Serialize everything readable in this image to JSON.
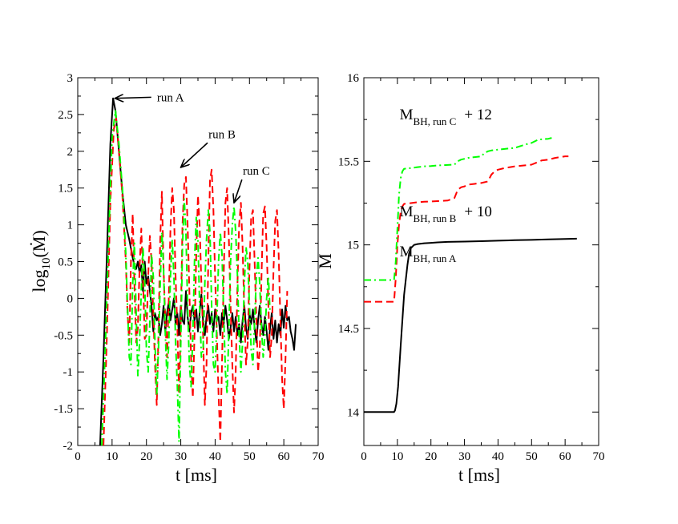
{
  "figure": {
    "left_panel": {
      "xlabel": "t [ms]",
      "ylabel_main": "log",
      "ylabel_sub": "10",
      "ylabel_tail": "(Ṁ)",
      "x_ticks": [
        "0",
        "10",
        "20",
        "30",
        "40",
        "50",
        "60",
        "70"
      ],
      "y_ticks": [
        "-2",
        "-1.5",
        "-1",
        "-0.5",
        "0",
        "0.5",
        "1",
        "1.5",
        "2",
        "2.5",
        "3"
      ]
    },
    "right_panel": {
      "xlabel": "t [ms]",
      "ylabel": "M",
      "x_ticks": [
        "0",
        "10",
        "20",
        "30",
        "40",
        "50",
        "60",
        "70"
      ],
      "y_ticks": [
        "14",
        "14.5",
        "15",
        "15.5",
        "16"
      ]
    }
  },
  "chart_data": [
    {
      "type": "line",
      "title": "",
      "xlabel": "t [ms]",
      "ylabel": "log10(Ṁ)",
      "xlim": [
        0,
        70
      ],
      "ylim": [
        -2,
        3
      ],
      "annotations": [
        {
          "text": "run A",
          "x": 27,
          "y": 2.68,
          "arrow_to": [
            10.8,
            2.72
          ]
        },
        {
          "text": "run B",
          "x": 42,
          "y": 2.18,
          "arrow_to": [
            30,
            1.78
          ]
        },
        {
          "text": "run C",
          "x": 52,
          "y": 1.68,
          "arrow_to": [
            45.5,
            1.3
          ]
        }
      ],
      "series": [
        {
          "name": "run A",
          "color": "#000000",
          "style": "solid",
          "x": [
            6.5,
            7.5,
            8.5,
            9.5,
            10.3,
            11,
            12,
            13,
            14,
            15,
            16,
            16.5,
            17,
            17.5,
            18,
            18.5,
            19,
            19.5,
            20,
            20.5,
            21,
            21.5,
            22,
            22.5,
            23,
            23.5,
            24,
            24.5,
            25,
            25.5,
            26,
            26.5,
            27,
            27.5,
            28,
            28.5,
            29,
            29.5,
            30,
            30.5,
            31,
            31.5,
            32,
            32.5,
            33,
            33.5,
            34,
            34.5,
            35,
            35.5,
            36,
            36.5,
            37,
            37.5,
            38,
            38.5,
            39,
            39.5,
            40,
            40.5,
            41,
            41.5,
            42,
            42.5,
            43,
            43.5,
            44,
            44.5,
            45,
            45.5,
            46,
            46.5,
            47,
            47.5,
            48,
            48.5,
            49,
            49.5,
            50,
            50.5,
            51,
            51.5,
            52,
            52.5,
            53,
            53.5,
            54,
            54.5,
            55,
            55.5,
            56,
            56.5,
            57,
            57.5,
            58,
            58.5,
            59,
            59.5,
            60,
            60.5,
            61,
            61.5,
            62,
            62.5,
            63,
            63.5
          ],
          "y": [
            -2.0,
            -0.8,
            0.6,
            2.1,
            2.72,
            2.55,
            2.0,
            1.45,
            1.0,
            0.8,
            0.55,
            0.45,
            0.4,
            0.5,
            0.35,
            0.45,
            0.1,
            0.5,
            0.2,
            0.3,
            0.1,
            -0.1,
            -0.45,
            -0.2,
            -0.3,
            -0.25,
            -0.5,
            -0.35,
            -0.1,
            -0.45,
            -0.2,
            -0.05,
            -0.3,
            -0.15,
            0.0,
            -0.35,
            -0.2,
            -0.5,
            -0.1,
            -0.3,
            -0.35,
            0.1,
            -0.25,
            -0.45,
            -0.2,
            -0.1,
            -0.3,
            -0.15,
            -0.45,
            -0.2,
            0.05,
            -0.3,
            -0.5,
            -0.25,
            -0.1,
            -0.35,
            -0.2,
            -0.45,
            -0.15,
            -0.3,
            -0.25,
            -0.5,
            -0.2,
            -0.35,
            -0.1,
            -0.3,
            -0.55,
            -0.4,
            -0.2,
            -0.45,
            -0.25,
            -0.5,
            -0.35,
            -0.6,
            -0.3,
            -0.1,
            -0.4,
            -0.55,
            -0.2,
            -0.35,
            -0.15,
            -0.4,
            -0.6,
            -0.3,
            -0.1,
            -0.35,
            -0.5,
            -0.25,
            -0.45,
            -0.7,
            -0.4,
            -0.2,
            -0.55,
            -0.3,
            -0.6,
            -0.35,
            -0.5,
            -0.15,
            -0.4,
            -0.1,
            -0.3,
            -0.25,
            -0.45,
            -0.55,
            -0.7,
            -0.35
          ]
        },
        {
          "name": "run B",
          "color": "#ff0000",
          "style": "dashed",
          "x": [
            7.5,
            8.5,
            9.5,
            10.5,
            11.2,
            12,
            13,
            14,
            14.5,
            15,
            15.5,
            16,
            16.5,
            17,
            17.5,
            18,
            18.5,
            19,
            19.5,
            20,
            20.5,
            21,
            21.5,
            22,
            22.5,
            23,
            23.5,
            24,
            24.5,
            25,
            25.5,
            26,
            26.5,
            27,
            27.5,
            28,
            28.5,
            29,
            29.5,
            30,
            30.5,
            31,
            31.5,
            32,
            32.5,
            33,
            33.5,
            34,
            34.5,
            35,
            35.5,
            36,
            36.5,
            37,
            37.5,
            38,
            38.5,
            39,
            39.5,
            40,
            40.5,
            41,
            41.5,
            42,
            42.5,
            43,
            43.5,
            44,
            44.5,
            45,
            45.5,
            46,
            46.5,
            47,
            47.5,
            48,
            48.5,
            49,
            49.5,
            50,
            50.5,
            51,
            51.5,
            52,
            52.5,
            53,
            53.5,
            54,
            54.5,
            55,
            55.5,
            56,
            56.5,
            57,
            57.5,
            58,
            58.5,
            59,
            59.5,
            60,
            60.5,
            61
          ],
          "y": [
            -2.0,
            -0.5,
            1.3,
            2.3,
            2.45,
            2.0,
            1.4,
            0.5,
            -0.2,
            -0.6,
            0.5,
            1.15,
            0.2,
            -0.6,
            -0.4,
            0.4,
            0.95,
            0.3,
            -0.55,
            -0.5,
            0.3,
            0.85,
            0.5,
            -0.2,
            -0.9,
            -1.45,
            -0.5,
            0.8,
            1.45,
            0.4,
            -0.3,
            -0.8,
            0.0,
            0.95,
            1.5,
            1.2,
            0.3,
            -0.4,
            -1.3,
            -0.3,
            1.0,
            1.55,
            1.65,
            1.0,
            0.1,
            -0.8,
            -1.35,
            -0.5,
            0.6,
            1.4,
            1.0,
            0.2,
            -0.5,
            -1.45,
            -0.9,
            0.5,
            1.6,
            1.75,
            1.2,
            0.3,
            -0.5,
            -1.3,
            -1.95,
            -0.9,
            0.3,
            1.3,
            1.5,
            0.8,
            -0.1,
            -0.9,
            -1.55,
            -1.0,
            0.2,
            1.0,
            1.3,
            0.7,
            -0.2,
            -0.9,
            -0.6,
            0.4,
            1.1,
            1.2,
            0.5,
            -0.3,
            -1.0,
            -0.7,
            0.3,
            1.15,
            1.25,
            0.7,
            -0.1,
            -0.8,
            -0.5,
            0.4,
            1.05,
            1.2,
            0.6,
            -0.3,
            -1.1,
            -1.5,
            -0.8,
            0.1
          ]
        },
        {
          "name": "run C",
          "color": "#00ff00",
          "style": "dashdot",
          "x": [
            7,
            8,
            9,
            10,
            11,
            12,
            13,
            14,
            14.5,
            15,
            15.5,
            16,
            16.5,
            17,
            17.5,
            18,
            18.5,
            19,
            19.5,
            20,
            20.5,
            21,
            21.5,
            22,
            22.5,
            23,
            23.5,
            24,
            24.5,
            25,
            25.5,
            26,
            26.5,
            27,
            27.5,
            28,
            28.5,
            29,
            29.5,
            30,
            30.5,
            31,
            31.5,
            32,
            32.5,
            33,
            33.5,
            34,
            34.5,
            35,
            35.5,
            36,
            36.5,
            37,
            37.5,
            38,
            38.5,
            39,
            39.5,
            40,
            40.5,
            41,
            41.5,
            42,
            42.5,
            43,
            43.5,
            44,
            44.5,
            45,
            45.5,
            46,
            46.5,
            47,
            47.5,
            48,
            48.5,
            49,
            49.5,
            50,
            50.5,
            51,
            51.5,
            52,
            52.5,
            53,
            53.5,
            54,
            54.5,
            55,
            55.5,
            56
          ],
          "y": [
            -2.0,
            -0.7,
            0.8,
            2.2,
            2.55,
            2.1,
            1.5,
            0.6,
            -0.1,
            -0.8,
            -0.9,
            0.2,
            0.75,
            -0.2,
            -1.05,
            -0.6,
            0.1,
            0.7,
            0.2,
            -0.7,
            -1.0,
            -0.3,
            0.6,
            0.3,
            -0.6,
            -1.3,
            -0.7,
            0.2,
            0.9,
            0.4,
            -0.5,
            -1.1,
            -0.6,
            0.3,
            0.8,
            0.3,
            -0.6,
            -1.2,
            -1.95,
            -0.6,
            0.7,
            1.35,
            0.9,
            -0.1,
            -0.9,
            -1.2,
            -0.5,
            0.5,
            1.1,
            0.8,
            -0.1,
            -0.8,
            -0.7,
            0.2,
            0.8,
            1.2,
            0.9,
            -0.1,
            -0.9,
            -1.0,
            -0.3,
            0.5,
            0.9,
            0.6,
            -0.2,
            -1.0,
            -1.3,
            -0.4,
            0.5,
            1.0,
            1.25,
            0.9,
            0.3,
            -0.5,
            -1.0,
            -0.6,
            0.2,
            0.7,
            0.5,
            -0.1,
            -0.7,
            -0.9,
            -0.3,
            0.3,
            0.55,
            0.2,
            -0.4,
            -0.8,
            -0.5,
            0.0,
            0.3,
            -0.2
          ]
        }
      ]
    },
    {
      "type": "line",
      "title": "",
      "xlabel": "t [ms]",
      "ylabel": "M",
      "xlim": [
        0,
        70
      ],
      "ylim": [
        13.8,
        16
      ],
      "annotations": [
        {
          "text": "M",
          "sub": "BH, run C",
          "tail": "+ 12",
          "x": 25,
          "y": 15.75
        },
        {
          "text": "M",
          "sub": "BH, run B",
          "tail": "+ 10",
          "x": 25,
          "y": 15.17
        },
        {
          "text": "M",
          "sub": "BH, run A",
          "tail": "",
          "x": 25,
          "y": 14.93
        }
      ],
      "series": [
        {
          "name": "M_BH, run A",
          "color": "#000000",
          "style": "solid",
          "x": [
            0,
            9,
            9.3,
            9.7,
            10.2,
            11,
            12,
            13,
            13.5,
            14,
            15,
            16,
            18,
            20,
            22,
            25,
            30,
            35,
            40,
            45,
            50,
            55,
            60,
            63.5
          ],
          "y": [
            14.0,
            14.0,
            14.01,
            14.05,
            14.15,
            14.4,
            14.7,
            14.88,
            14.95,
            14.98,
            15.0,
            15.005,
            15.01,
            15.012,
            15.015,
            15.018,
            15.02,
            15.022,
            15.025,
            15.028,
            15.03,
            15.033,
            15.035,
            15.037
          ]
        },
        {
          "name": "M_BH, run B + 10",
          "color": "#ff0000",
          "style": "dashed",
          "x": [
            0,
            9,
            9.5,
            10,
            10.5,
            11,
            11.5,
            12,
            14,
            16,
            18,
            20,
            22,
            25,
            27,
            28,
            29,
            30,
            31,
            33,
            35,
            37,
            38,
            39,
            40,
            42,
            45,
            50,
            53,
            55,
            57,
            60,
            61
          ],
          "y": [
            14.66,
            14.66,
            14.8,
            15.0,
            15.12,
            15.2,
            15.23,
            15.245,
            15.25,
            15.255,
            15.258,
            15.26,
            15.262,
            15.265,
            15.28,
            15.33,
            15.345,
            15.35,
            15.36,
            15.365,
            15.37,
            15.38,
            15.42,
            15.44,
            15.45,
            15.46,
            15.47,
            15.48,
            15.505,
            15.51,
            15.52,
            15.53,
            15.53
          ]
        },
        {
          "name": "M_BH, run C + 12",
          "color": "#00ff00",
          "style": "dashdot",
          "x": [
            0,
            9,
            9.5,
            10,
            10.5,
            11,
            11.5,
            12,
            14,
            16,
            18,
            20,
            22,
            25,
            27,
            28,
            29,
            30,
            31,
            33,
            35,
            36,
            37,
            38,
            40,
            45,
            48,
            50,
            52,
            55,
            56
          ],
          "y": [
            14.79,
            14.79,
            14.9,
            15.1,
            15.3,
            15.4,
            15.44,
            15.455,
            15.46,
            15.465,
            15.47,
            15.472,
            15.475,
            15.478,
            15.48,
            15.5,
            15.51,
            15.515,
            15.52,
            15.525,
            15.53,
            15.55,
            15.56,
            15.565,
            15.57,
            15.58,
            15.6,
            15.61,
            15.63,
            15.635,
            15.64
          ]
        }
      ]
    }
  ]
}
